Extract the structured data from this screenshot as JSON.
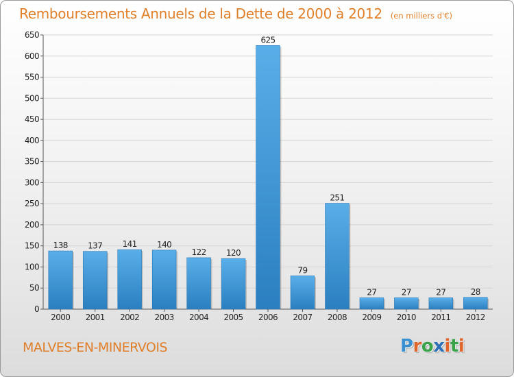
{
  "header": {
    "title": "Remboursements Annuels de la Dette de 2000 à 2012",
    "subtitle": "(en milliers d'€)"
  },
  "footer": {
    "commune": "MALVES-EN-MINERVOIS",
    "logo": {
      "letters": [
        "P",
        "r",
        "o",
        "x",
        "i",
        "t",
        "i"
      ],
      "colors": [
        "#3a8fd0",
        "#e0652a",
        "#3aa34a",
        "#2a6fb8",
        "#e0652a",
        "#3aa34a",
        "#e0652a"
      ]
    }
  },
  "colors": {
    "title": "#e07f2a",
    "bar_light": "#5aaee8",
    "bar_dark": "#2a7fc0",
    "grid": "#d4d4d4"
  },
  "chart_data": {
    "type": "bar",
    "title": "Remboursements Annuels de la Dette de 2000 à 2012",
    "subtitle": "(en milliers d'€)",
    "xlabel": "",
    "ylabel": "",
    "categories": [
      "2000",
      "2001",
      "2002",
      "2003",
      "2004",
      "2005",
      "2006",
      "2007",
      "2008",
      "2009",
      "2010",
      "2011",
      "2012"
    ],
    "values": [
      138,
      137,
      141,
      140,
      122,
      120,
      625,
      79,
      251,
      27,
      27,
      27,
      28
    ],
    "ylim": [
      0,
      650
    ],
    "yticks": [
      0,
      50,
      100,
      150,
      200,
      250,
      300,
      350,
      400,
      450,
      500,
      550,
      600,
      650
    ],
    "grid": true,
    "legend": "none"
  }
}
